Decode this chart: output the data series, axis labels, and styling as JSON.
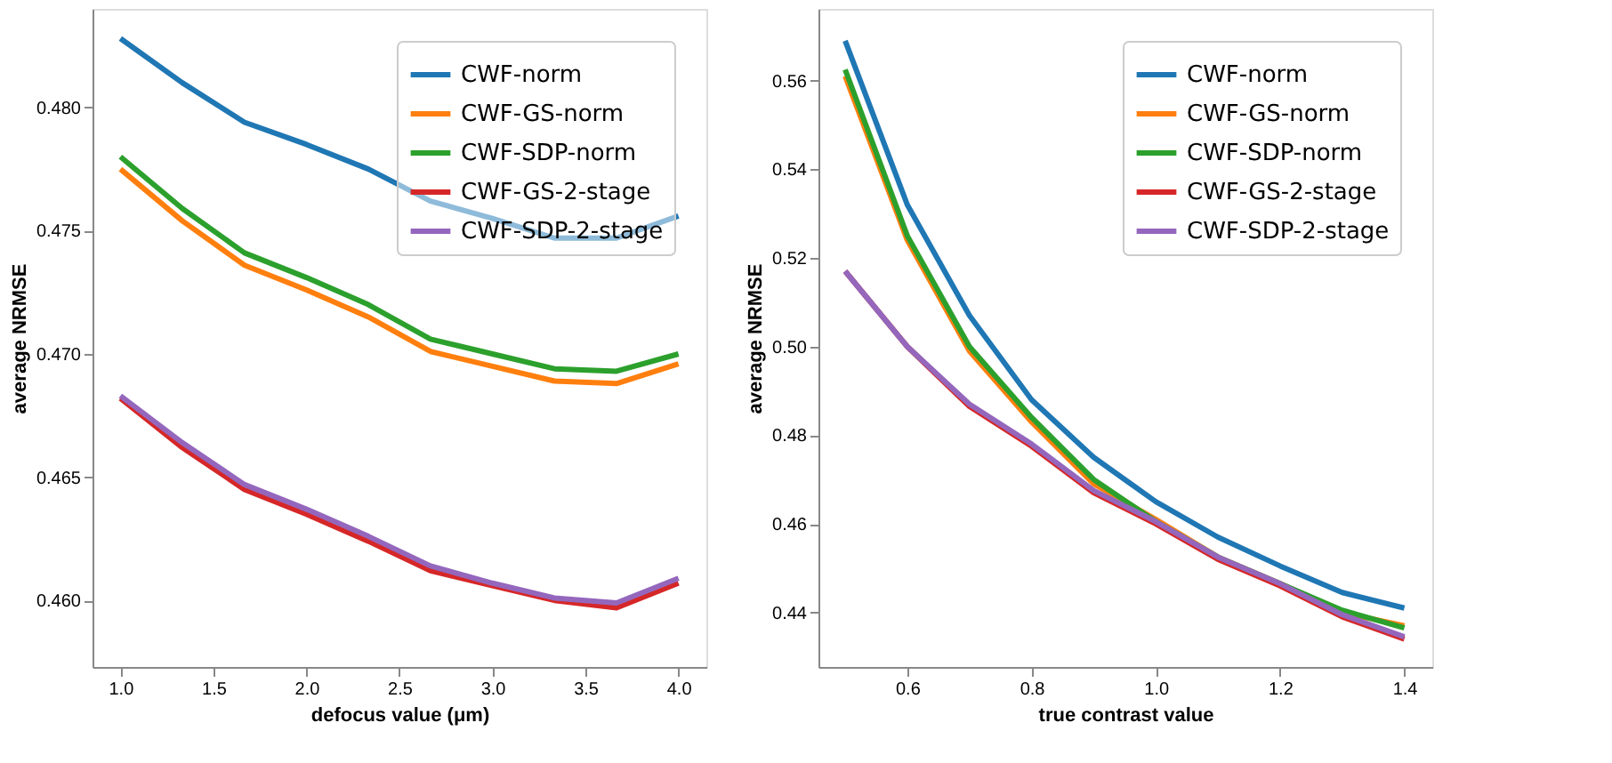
{
  "chart_data": [
    {
      "type": "line",
      "xlabel": "defocus value (μm)",
      "ylabel": "average NRMSE",
      "x": [
        1.0,
        1.333,
        1.667,
        2.0,
        2.333,
        2.667,
        3.0,
        3.333,
        3.667,
        4.0
      ],
      "xlim": [
        0.85,
        4.15
      ],
      "xticks": [
        {
          "value": 1,
          "label": "1.0"
        },
        {
          "value": 1.5,
          "label": "1.5"
        },
        {
          "value": 2,
          "label": "2.0"
        },
        {
          "value": 2.5,
          "label": "2.5"
        },
        {
          "value": 3,
          "label": "3.0"
        },
        {
          "value": 3.5,
          "label": "3.5"
        },
        {
          "value": 4,
          "label": "4.0"
        }
      ],
      "ylim": [
        0.4573,
        0.484
      ],
      "yticks": [
        {
          "value": 0.46,
          "label": "0.460"
        },
        {
          "value": 0.465,
          "label": "0.465"
        },
        {
          "value": 0.47,
          "label": "0.470"
        },
        {
          "value": 0.475,
          "label": "0.475"
        },
        {
          "value": 0.48,
          "label": "0.480"
        }
      ],
      "legend": "top right",
      "grid": false,
      "marker": "none",
      "line_style": "solid",
      "series": [
        {
          "name": "CWF-norm",
          "color": "#1f77b4",
          "values": [
            0.4828,
            0.481,
            0.4794,
            0.4785,
            0.4775,
            0.4762,
            0.4755,
            0.4747,
            0.4747,
            0.4756
          ]
        },
        {
          "name": "CWF-GS-norm",
          "color": "#ff7f0e",
          "values": [
            0.4775,
            0.4754,
            0.4736,
            0.4726,
            0.4715,
            0.4701,
            0.4695,
            0.4689,
            0.4688,
            0.4696
          ]
        },
        {
          "name": "CWF-SDP-norm",
          "color": "#2ca02c",
          "values": [
            0.478,
            0.4759,
            0.4741,
            0.4731,
            0.472,
            0.4706,
            0.47,
            0.4694,
            0.4693,
            0.47
          ]
        },
        {
          "name": "CWF-GS-2-stage",
          "color": "#d62728",
          "values": [
            0.4682,
            0.4662,
            0.4645,
            0.4635,
            0.4624,
            0.4612,
            0.4606,
            0.46,
            0.4597,
            0.4607
          ]
        },
        {
          "name": "CWF-SDP-2-stage",
          "color": "#9467bd",
          "values": [
            0.4683,
            0.4664,
            0.4647,
            0.4637,
            0.4626,
            0.4614,
            0.4607,
            0.4601,
            0.4599,
            0.4609
          ]
        }
      ]
    },
    {
      "type": "line",
      "xlabel": "true contrast value",
      "ylabel": "average NRMSE",
      "x": [
        0.5,
        0.6,
        0.7,
        0.8,
        0.9,
        1.0,
        1.1,
        1.2,
        1.3,
        1.4
      ],
      "xlim": [
        0.457,
        1.445
      ],
      "xticks": [
        0.6,
        0.8,
        {
          "value": 1,
          "label": "1.0"
        },
        1.2,
        1.4
      ],
      "ylim": [
        0.4277,
        0.5762
      ],
      "yticks": [
        0.44,
        0.46,
        0.48,
        {
          "value": 0.5,
          "label": "0.50"
        },
        0.52,
        0.54,
        0.56
      ],
      "legend": "top right",
      "grid": false,
      "marker": "none",
      "line_style": "solid",
      "series": [
        {
          "name": "CWF-norm",
          "color": "#1f77b4",
          "values": [
            0.569,
            0.532,
            0.507,
            0.488,
            0.475,
            0.465,
            0.457,
            0.4505,
            0.4445,
            0.441
          ]
        },
        {
          "name": "CWF-GS-norm",
          "color": "#ff7f0e",
          "values": [
            0.561,
            0.524,
            0.499,
            0.483,
            0.469,
            0.461,
            0.4525,
            0.4465,
            0.44,
            0.437
          ]
        },
        {
          "name": "CWF-SDP-norm",
          "color": "#2ca02c",
          "values": [
            0.5625,
            0.525,
            0.5,
            0.484,
            0.47,
            0.4605,
            0.4525,
            0.4465,
            0.4405,
            0.4365
          ]
        },
        {
          "name": "CWF-GS-2-stage",
          "color": "#d62728",
          "values": [
            0.517,
            0.5,
            0.4865,
            0.4775,
            0.467,
            0.46,
            0.452,
            0.446,
            0.439,
            0.434
          ]
        },
        {
          "name": "CWF-SDP-2-stage",
          "color": "#9467bd",
          "values": [
            0.517,
            0.5,
            0.487,
            0.478,
            0.4675,
            0.4605,
            0.4525,
            0.4465,
            0.4395,
            0.4345
          ]
        }
      ]
    }
  ]
}
